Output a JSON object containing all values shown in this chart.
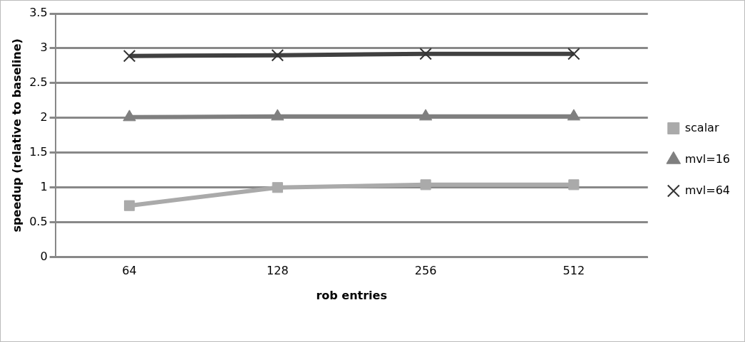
{
  "chart_data": {
    "type": "line",
    "xlabel": "rob entries",
    "ylabel": "speedup (relative to baseline)",
    "categories": [
      "64",
      "128",
      "256",
      "512"
    ],
    "series": [
      {
        "name": "scalar",
        "color": "#aaaaaa",
        "marker": "square",
        "values": [
          0.74,
          1.0,
          1.04,
          1.04
        ]
      },
      {
        "name": "mvl=16",
        "color": "#7f7f7f",
        "marker": "triangle",
        "values": [
          2.01,
          2.02,
          2.02,
          2.02
        ]
      },
      {
        "name": "mvl=64",
        "color": "#404040",
        "marker": "cross",
        "values": [
          2.89,
          2.9,
          2.92,
          2.92
        ]
      }
    ],
    "ylim": [
      0,
      3.5
    ],
    "yticks": [
      0,
      0.5,
      1,
      1.5,
      2,
      2.5,
      3,
      3.5
    ],
    "grid": "y",
    "legend": "right"
  }
}
